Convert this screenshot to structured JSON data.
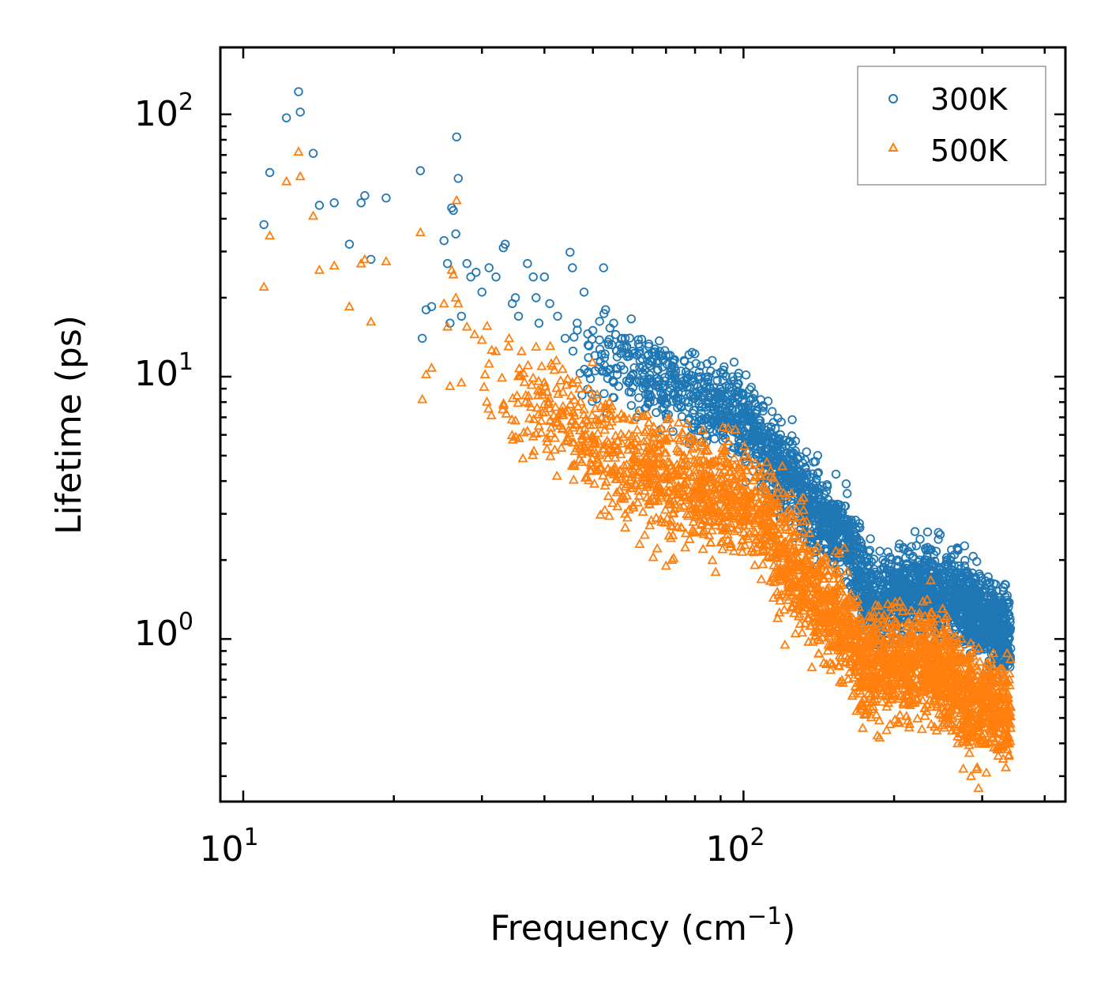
{
  "chart_data": {
    "type": "scatter",
    "xscale": "log",
    "yscale": "log",
    "xlabel": "Frequency (cm",
    "xlabel_sup": "−1",
    "xlabel_close": ")",
    "ylabel": "Lifetime (ps)",
    "xlim": [
      9.0,
      440.0
    ],
    "ylim": [
      0.24,
      180.0
    ],
    "x_ticks": [
      {
        "value": 10,
        "base": "10",
        "exp": "1"
      },
      {
        "value": 100,
        "base": "10",
        "exp": "2"
      }
    ],
    "y_ticks": [
      {
        "value": 1,
        "base": "10",
        "exp": "0"
      },
      {
        "value": 10,
        "base": "10",
        "exp": "1"
      },
      {
        "value": 100,
        "base": "10",
        "exp": "2"
      }
    ],
    "legend_position": "top-right",
    "series": [
      {
        "name": "300K",
        "color": "#1f77b4",
        "marker": "circle",
        "points": [
          [
            11.0,
            38
          ],
          [
            11.3,
            60
          ],
          [
            12.2,
            97
          ],
          [
            12.9,
            122
          ],
          [
            13.0,
            102
          ],
          [
            13.8,
            71
          ],
          [
            14.2,
            45
          ],
          [
            15.2,
            46
          ],
          [
            16.3,
            32
          ],
          [
            17.2,
            46
          ],
          [
            17.5,
            49
          ],
          [
            18.0,
            28
          ],
          [
            19.3,
            48
          ],
          [
            22.6,
            61
          ],
          [
            22.8,
            14
          ],
          [
            23.2,
            18
          ],
          [
            23.8,
            18.5
          ],
          [
            25.2,
            33
          ],
          [
            25.6,
            27
          ],
          [
            25.9,
            16
          ],
          [
            26.1,
            44
          ],
          [
            26.3,
            43
          ],
          [
            26.6,
            35
          ],
          [
            26.7,
            82
          ],
          [
            26.9,
            57
          ],
          [
            27.3,
            17
          ],
          [
            28.0,
            27
          ],
          [
            28.5,
            24
          ],
          [
            29.2,
            25
          ],
          [
            30.0,
            21
          ],
          [
            31.0,
            26
          ],
          [
            32.0,
            24
          ],
          [
            33.1,
            31
          ],
          [
            33.4,
            32
          ],
          [
            34.5,
            19
          ],
          [
            35.0,
            20
          ],
          [
            35.5,
            17
          ],
          [
            37.0,
            27
          ],
          [
            38.0,
            24
          ],
          [
            38.5,
            20
          ],
          [
            39.0,
            16
          ],
          [
            40.0,
            24
          ],
          [
            41.0,
            19
          ],
          [
            42.5,
            17
          ],
          [
            44.0,
            14
          ],
          [
            45.0,
            29.8
          ],
          [
            45.5,
            26
          ],
          [
            46.5,
            16
          ],
          [
            48.0,
            21
          ],
          [
            50.0,
            15
          ],
          [
            52.5,
            26
          ],
          [
            53.0,
            18
          ],
          [
            55.0,
            16
          ],
          [
            58.0,
            14
          ],
          [
            60.0,
            12.5
          ],
          [
            62.0,
            13
          ],
          [
            65.0,
            11
          ],
          [
            68.0,
            12.5
          ],
          [
            72.0,
            11
          ],
          [
            75.0,
            10.5
          ],
          [
            78.0,
            11
          ],
          [
            82.0,
            10
          ],
          [
            86.0,
            10.5
          ],
          [
            90.0,
            10.4
          ],
          [
            97.0,
            8.5
          ],
          [
            102.0,
            7.8
          ],
          [
            108.0,
            6.8
          ],
          [
            115.0,
            5.5
          ],
          [
            122.0,
            4.6
          ],
          [
            130.0,
            3.8
          ],
          [
            138.0,
            3.2
          ],
          [
            146.0,
            2.9
          ],
          [
            153.0,
            2.75
          ],
          [
            160.0,
            2.6
          ],
          [
            167.0,
            2.4
          ],
          [
            178.0,
            2.15
          ],
          [
            190.0,
            2.0
          ],
          [
            205.0,
            2.3
          ],
          [
            215.0,
            2.1
          ],
          [
            225.0,
            2.0
          ],
          [
            240.0,
            1.9
          ],
          [
            255.0,
            2.0
          ],
          [
            268.0,
            2.2
          ],
          [
            278.0,
            1.8
          ],
          [
            290.0,
            1.4
          ],
          [
            305.0,
            1.55
          ],
          [
            315.0,
            1.2
          ],
          [
            325.0,
            1.1
          ],
          [
            335.0,
            0.95
          ],
          [
            342.0,
            0.92
          ]
        ]
      },
      {
        "name": "500K",
        "color": "#ff7f0e",
        "marker": "triangle",
        "points": [
          [
            11.0,
            22
          ],
          [
            11.3,
            34.5
          ],
          [
            12.2,
            55.5
          ],
          [
            12.9,
            72
          ],
          [
            13.0,
            58
          ],
          [
            13.8,
            41
          ],
          [
            14.2,
            25.5
          ],
          [
            15.2,
            26.5
          ],
          [
            16.3,
            18.5
          ],
          [
            17.2,
            27
          ],
          [
            17.5,
            28
          ],
          [
            18.0,
            16.2
          ],
          [
            19.3,
            27.5
          ],
          [
            22.6,
            35.5
          ],
          [
            22.8,
            8.2
          ],
          [
            23.2,
            10.2
          ],
          [
            23.8,
            10.8
          ],
          [
            25.2,
            19
          ],
          [
            25.6,
            15.5
          ],
          [
            25.9,
            9.2
          ],
          [
            26.1,
            25.5
          ],
          [
            26.3,
            24.5
          ],
          [
            26.6,
            20
          ],
          [
            26.7,
            47
          ],
          [
            26.9,
            19
          ],
          [
            27.3,
            9.5
          ],
          [
            28.0,
            15.5
          ],
          [
            29.0,
            14.5
          ],
          [
            30.0,
            13.8
          ],
          [
            31.0,
            11.2
          ],
          [
            32.0,
            12.5
          ],
          [
            33.0,
            7.5
          ],
          [
            34.0,
            14.0
          ],
          [
            35.0,
            6.8
          ],
          [
            36.0,
            12.5
          ],
          [
            37.0,
            6.2
          ],
          [
            38.5,
            13
          ],
          [
            40.0,
            9.5
          ],
          [
            41.5,
            11
          ],
          [
            43.0,
            6.5
          ],
          [
            44.5,
            9.8
          ],
          [
            46.0,
            5.2
          ],
          [
            48.0,
            7.5
          ],
          [
            50.0,
            5.8
          ],
          [
            52.0,
            4.5
          ],
          [
            54.0,
            6.5
          ],
          [
            56.0,
            3.2
          ],
          [
            58.0,
            3.0
          ],
          [
            60.0,
            5.5
          ],
          [
            62.0,
            2.3
          ],
          [
            64.0,
            4.0
          ],
          [
            66.0,
            2.05
          ],
          [
            68.0,
            5.8
          ],
          [
            70.0,
            1.9
          ],
          [
            72.0,
            2.0
          ],
          [
            74.0,
            4.2
          ],
          [
            76.0,
            5.0
          ],
          [
            78.0,
            2.4
          ],
          [
            80.0,
            4.4
          ],
          [
            83.0,
            2.2
          ],
          [
            86.0,
            4.6
          ],
          [
            88.0,
            1.8
          ],
          [
            91.0,
            5.2
          ],
          [
            94.0,
            2.3
          ],
          [
            98.0,
            4.5
          ],
          [
            102.0,
            3.5
          ],
          [
            107.0,
            3.3
          ],
          [
            112.0,
            2.5
          ],
          [
            117.0,
            1.2
          ],
          [
            121.0,
            0.95
          ],
          [
            126.0,
            1.7
          ],
          [
            131.0,
            1.5
          ],
          [
            137.0,
            0.78
          ],
          [
            143.0,
            1.25
          ],
          [
            150.0,
            1.5
          ],
          [
            158.0,
            0.68
          ],
          [
            165.0,
            1.1
          ],
          [
            173.0,
            0.72
          ],
          [
            182.0,
            0.65
          ],
          [
            192.0,
            0.61
          ],
          [
            200.0,
            0.78
          ],
          [
            210.0,
            0.95
          ],
          [
            222.0,
            0.7
          ],
          [
            235.0,
            0.8
          ],
          [
            248.0,
            0.73
          ],
          [
            260.0,
            0.55
          ],
          [
            268.0,
            0.4
          ],
          [
            275.0,
            0.32
          ],
          [
            285.0,
            0.3
          ],
          [
            295.0,
            0.27
          ],
          [
            305.0,
            0.4
          ],
          [
            315.0,
            0.5
          ],
          [
            325.0,
            0.55
          ],
          [
            335.0,
            0.6
          ],
          [
            342.0,
            0.55
          ]
        ]
      }
    ],
    "density_trend": {
      "300K": {
        "x_range": [
          45,
          342
        ],
        "median": [
          [
            45,
            13.0
          ],
          [
            55,
            11.0
          ],
          [
            65,
            10.0
          ],
          [
            75,
            8.8
          ],
          [
            85,
            7.8
          ],
          [
            95,
            7.2
          ],
          [
            105,
            6.0
          ],
          [
            115,
            4.8
          ],
          [
            125,
            4.0
          ],
          [
            135,
            3.3
          ],
          [
            145,
            2.9
          ],
          [
            160,
            2.5
          ],
          [
            175,
            1.5
          ],
          [
            185,
            1.35
          ],
          [
            200,
            1.5
          ],
          [
            220,
            1.55
          ],
          [
            240,
            1.5
          ],
          [
            260,
            1.5
          ],
          [
            280,
            1.35
          ],
          [
            300,
            1.25
          ],
          [
            320,
            1.15
          ],
          [
            342,
            1.0
          ]
        ],
        "spread": 1.4
      },
      "500K": {
        "x_range": [
          30,
          342
        ],
        "median": [
          [
            30,
            10.5
          ],
          [
            40,
            7.5
          ],
          [
            50,
            5.6
          ],
          [
            60,
            4.6
          ],
          [
            70,
            4.0
          ],
          [
            80,
            3.8
          ],
          [
            90,
            3.6
          ],
          [
            100,
            3.4
          ],
          [
            110,
            2.8
          ],
          [
            120,
            2.2
          ],
          [
            130,
            1.8
          ],
          [
            140,
            1.5
          ],
          [
            150,
            1.3
          ],
          [
            160,
            1.15
          ],
          [
            170,
            0.85
          ],
          [
            185,
            0.8
          ],
          [
            200,
            0.8
          ],
          [
            220,
            0.82
          ],
          [
            240,
            0.8
          ],
          [
            260,
            0.7
          ],
          [
            280,
            0.6
          ],
          [
            300,
            0.55
          ],
          [
            320,
            0.55
          ],
          [
            342,
            0.5
          ]
        ],
        "spread": 1.55
      }
    }
  }
}
